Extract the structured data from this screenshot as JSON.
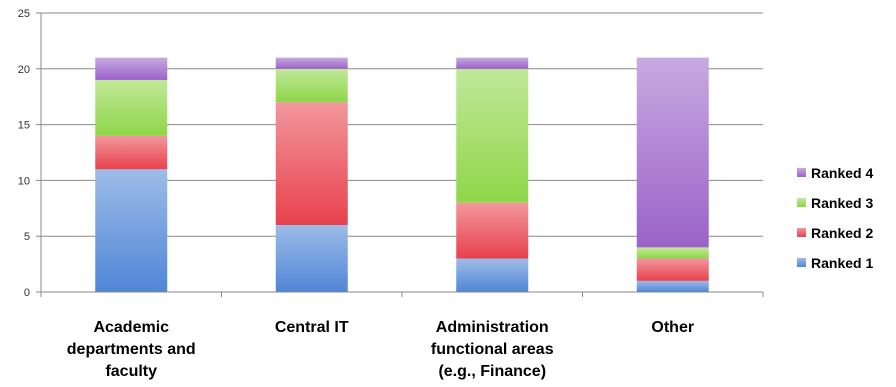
{
  "chart_data": {
    "type": "bar",
    "stacked": true,
    "categories": [
      [
        "Academic",
        "departments and",
        "faculty"
      ],
      [
        "Central IT"
      ],
      [
        "Administration",
        "functional areas",
        "(e.g., Finance)"
      ],
      [
        "Other"
      ]
    ],
    "series": [
      {
        "name": "Ranked 1",
        "values": [
          11,
          6,
          3,
          1
        ],
        "color": "#4f86d6"
      },
      {
        "name": "Ranked 2",
        "values": [
          3,
          11,
          5,
          2
        ],
        "color": "#e8414d"
      },
      {
        "name": "Ranked 3",
        "values": [
          5,
          3,
          12,
          1
        ],
        "color": "#8fd648"
      },
      {
        "name": "Ranked 4",
        "values": [
          2,
          1,
          1,
          17
        ],
        "color": "#9b62c8"
      }
    ],
    "y_ticks": [
      "0",
      "5",
      "10",
      "15",
      "20",
      "25"
    ],
    "ylim": [
      0,
      25
    ],
    "grid": true,
    "legend_position": "right"
  }
}
